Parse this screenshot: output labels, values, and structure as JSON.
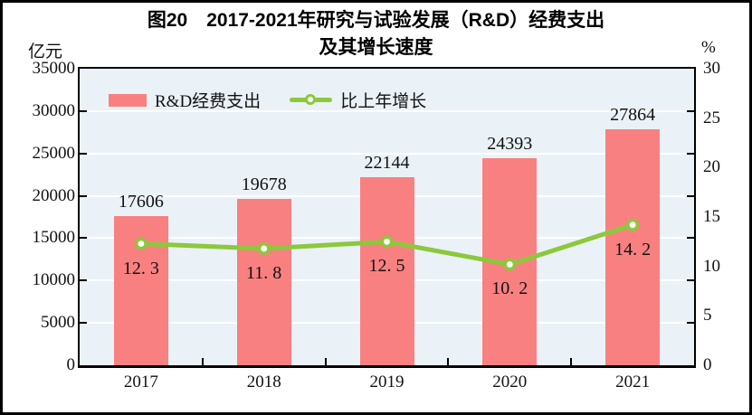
{
  "figure": {
    "title_line1": "图20　2017-2021年研究与试验发展（R&D）经费支出",
    "title_line2": "及其增长速度",
    "left_unit": "亿元",
    "right_unit": "%"
  },
  "legend": {
    "bar_label": "R&D经费支出",
    "line_label": "比上年增长"
  },
  "colors": {
    "bar": "#F98080",
    "line": "#8CC83C",
    "marker_fill": "#FFFFFF",
    "plot_bg": "#EAF2F8",
    "grid": "#FFFFFF",
    "axis": "#000000"
  },
  "chart_data": {
    "type": "bar",
    "subtype": "bar-line-combo",
    "title": "图20 2017-2021年研究与试验发展（R&D）经费支出及其增长速度",
    "categories": [
      "2017",
      "2018",
      "2019",
      "2020",
      "2021"
    ],
    "series": [
      {
        "name": "R&D经费支出",
        "type": "bar",
        "axis": "left",
        "values": [
          17606,
          19678,
          22144,
          24393,
          27864
        ],
        "value_labels": [
          "17606",
          "19678",
          "22144",
          "24393",
          "27864"
        ]
      },
      {
        "name": "比上年增长",
        "type": "line",
        "axis": "right",
        "values": [
          12.3,
          11.8,
          12.5,
          10.2,
          14.2
        ],
        "value_labels": [
          "12. 3",
          "11. 8",
          "12. 5",
          "10. 2",
          "14. 2"
        ]
      }
    ],
    "left_axis": {
      "unit": "亿元",
      "range": [
        0,
        35000
      ],
      "tick_step": 5000,
      "tick_labels": [
        "0",
        "5000",
        "10000",
        "15000",
        "20000",
        "25000",
        "30000",
        "35000"
      ]
    },
    "right_axis": {
      "unit": "%",
      "range": [
        0,
        30
      ],
      "tick_step": 5,
      "tick_labels": [
        "0",
        "5",
        "10",
        "15",
        "20",
        "25",
        "30"
      ]
    },
    "grid": true,
    "legend_position": "inside-top-left"
  }
}
